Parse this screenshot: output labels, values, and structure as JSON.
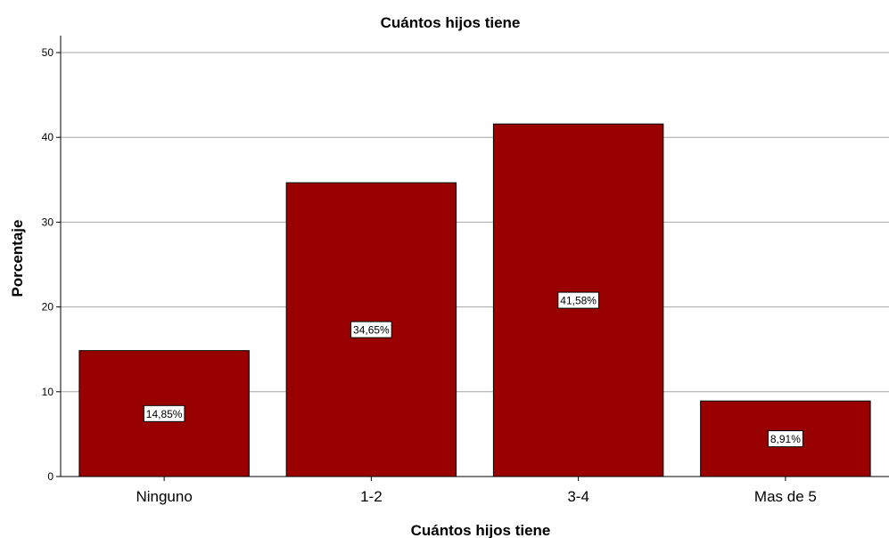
{
  "chart_data": {
    "type": "bar",
    "title": "Cuántos hijos tiene",
    "xlabel": "Cuántos hijos tiene",
    "ylabel": "Porcentaje",
    "categories": [
      "Ninguno",
      "1-2",
      "3-4",
      "Mas de 5"
    ],
    "values": [
      14.85,
      34.65,
      41.58,
      8.91
    ],
    "data_labels": [
      "14,85%",
      "34,65%",
      "41,58%",
      "8,91%"
    ],
    "ylim": [
      0,
      52
    ],
    "yticks": [
      0,
      10,
      20,
      30,
      40,
      50
    ],
    "grid": true,
    "bar_color": "#990000",
    "grid_color": "#a6a6a6"
  }
}
